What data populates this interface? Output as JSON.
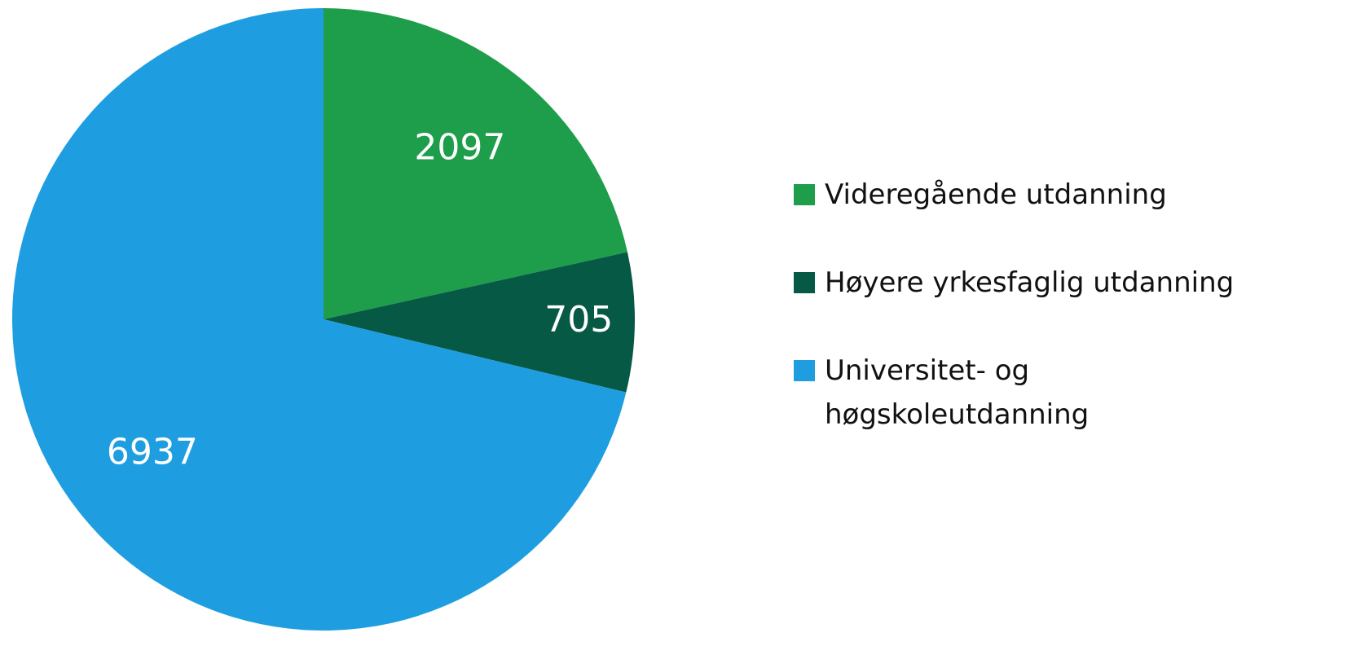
{
  "chart_data": {
    "type": "pie",
    "categories": [
      "Videregående utdanning",
      "Høyere yrkesfaglig utdanning",
      "Universitet- og høgskoleutdanning"
    ],
    "values": [
      2097,
      705,
      6937
    ],
    "colors": [
      "#1e9e4a",
      "#065944",
      "#1e9ee0"
    ],
    "legend": "right"
  }
}
